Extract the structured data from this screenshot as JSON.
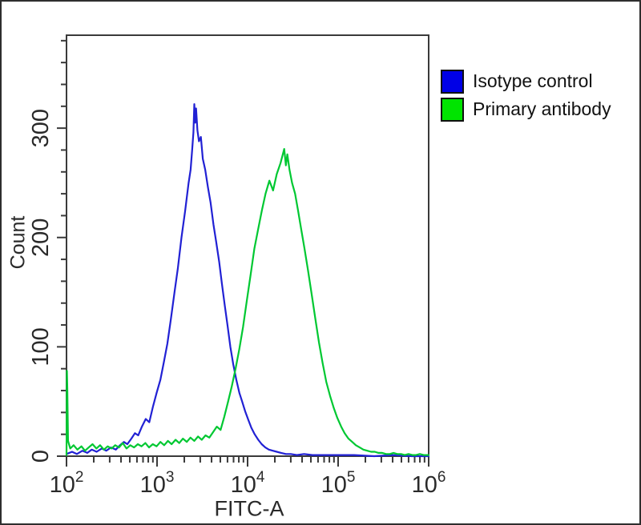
{
  "figure": {
    "background": "#ffffff",
    "outer_border_color": "#2e2e2e",
    "frame_color": "#3a3a3a",
    "text_color": "#2a2a2a"
  },
  "chart_data": {
    "type": "line",
    "title": "",
    "xlabel": "FITC-A",
    "ylabel": "Count",
    "x_scale": "log10",
    "x_range": [
      100,
      1000000
    ],
    "y_range": [
      0,
      385
    ],
    "x_major_ticks": [
      100,
      1000,
      10000,
      100000,
      1000000
    ],
    "x_tick_exponents": [
      2,
      3,
      4,
      5,
      6
    ],
    "x_tick_base": "10",
    "y_major_ticks": [
      0,
      100,
      200,
      300
    ],
    "y_minor_step": 20,
    "grid": false,
    "legend_position": "outside-top-right",
    "series": [
      {
        "name": "Isotype control",
        "color": "#2121d4",
        "swatch_color": "#0000e6",
        "points": [
          [
            100,
            2
          ],
          [
            115,
            4
          ],
          [
            130,
            2
          ],
          [
            150,
            5
          ],
          [
            170,
            3
          ],
          [
            190,
            6
          ],
          [
            215,
            4
          ],
          [
            245,
            7
          ],
          [
            275,
            5
          ],
          [
            310,
            8
          ],
          [
            350,
            6
          ],
          [
            390,
            10
          ],
          [
            430,
            13
          ],
          [
            470,
            11
          ],
          [
            520,
            16
          ],
          [
            570,
            21
          ],
          [
            620,
            19
          ],
          [
            680,
            27
          ],
          [
            750,
            34
          ],
          [
            820,
            31
          ],
          [
            900,
            45
          ],
          [
            990,
            58
          ],
          [
            1090,
            70
          ],
          [
            1190,
            86
          ],
          [
            1300,
            103
          ],
          [
            1420,
            125
          ],
          [
            1560,
            150
          ],
          [
            1700,
            172
          ],
          [
            1860,
            200
          ],
          [
            2040,
            224
          ],
          [
            2230,
            250
          ],
          [
            2350,
            262
          ],
          [
            2440,
            280
          ],
          [
            2520,
            296
          ],
          [
            2580,
            322
          ],
          [
            2640,
            305
          ],
          [
            2700,
            318
          ],
          [
            2790,
            298
          ],
          [
            2900,
            288
          ],
          [
            3050,
            292
          ],
          [
            3200,
            272
          ],
          [
            3400,
            262
          ],
          [
            3650,
            246
          ],
          [
            3900,
            232
          ],
          [
            4200,
            212
          ],
          [
            4500,
            196
          ],
          [
            4850,
            178
          ],
          [
            5200,
            158
          ],
          [
            5600,
            138
          ],
          [
            6000,
            120
          ],
          [
            6450,
            100
          ],
          [
            6950,
            84
          ],
          [
            7500,
            70
          ],
          [
            8100,
            58
          ],
          [
            8700,
            50
          ],
          [
            9400,
            41
          ],
          [
            10200,
            33
          ],
          [
            11000,
            26
          ],
          [
            12000,
            20
          ],
          [
            13100,
            15
          ],
          [
            14300,
            11
          ],
          [
            15700,
            8
          ],
          [
            17200,
            6
          ],
          [
            19000,
            5
          ],
          [
            21000,
            4
          ],
          [
            23500,
            3
          ],
          [
            26500,
            2
          ],
          [
            30000,
            2
          ],
          [
            35000,
            1
          ],
          [
            42000,
            2
          ],
          [
            52000,
            1
          ],
          [
            70000,
            1
          ],
          [
            100000,
            1
          ],
          [
            150000,
            1
          ],
          [
            250000,
            0
          ],
          [
            400000,
            1
          ],
          [
            650000,
            0
          ],
          [
            1000000,
            0
          ]
        ]
      },
      {
        "name": "Primary antibody",
        "color": "#00c832",
        "swatch_color": "#00e400",
        "points": [
          [
            100,
            1
          ],
          [
            101,
            78
          ],
          [
            102,
            62
          ],
          [
            104,
            14
          ],
          [
            110,
            7
          ],
          [
            120,
            10
          ],
          [
            132,
            6
          ],
          [
            146,
            9
          ],
          [
            160,
            5
          ],
          [
            176,
            8
          ],
          [
            194,
            11
          ],
          [
            214,
            7
          ],
          [
            235,
            10
          ],
          [
            259,
            6
          ],
          [
            285,
            9
          ],
          [
            314,
            7
          ],
          [
            345,
            10
          ],
          [
            380,
            8
          ],
          [
            418,
            12
          ],
          [
            460,
            7
          ],
          [
            506,
            10
          ],
          [
            557,
            8
          ],
          [
            613,
            11
          ],
          [
            674,
            9
          ],
          [
            742,
            12
          ],
          [
            816,
            8
          ],
          [
            898,
            11
          ],
          [
            988,
            9
          ],
          [
            1090,
            13
          ],
          [
            1200,
            10
          ],
          [
            1320,
            14
          ],
          [
            1450,
            11
          ],
          [
            1600,
            15
          ],
          [
            1760,
            12
          ],
          [
            1930,
            16
          ],
          [
            2130,
            13
          ],
          [
            2340,
            17
          ],
          [
            2580,
            14
          ],
          [
            2840,
            18
          ],
          [
            3120,
            15
          ],
          [
            3430,
            19
          ],
          [
            3780,
            17
          ],
          [
            4160,
            22
          ],
          [
            4570,
            27
          ],
          [
            5030,
            24
          ],
          [
            5530,
            36
          ],
          [
            6090,
            50
          ],
          [
            6700,
            64
          ],
          [
            7370,
            80
          ],
          [
            8100,
            98
          ],
          [
            8900,
            118
          ],
          [
            9800,
            142
          ],
          [
            10800,
            166
          ],
          [
            11900,
            190
          ],
          [
            13100,
            208
          ],
          [
            14400,
            225
          ],
          [
            15800,
            240
          ],
          [
            17400,
            252
          ],
          [
            19100,
            243
          ],
          [
            21000,
            258
          ],
          [
            23100,
            268
          ],
          [
            25400,
            281
          ],
          [
            26500,
            266
          ],
          [
            27500,
            276
          ],
          [
            29000,
            262
          ],
          [
            31000,
            250
          ],
          [
            33500,
            240
          ],
          [
            36000,
            225
          ],
          [
            39000,
            208
          ],
          [
            42500,
            190
          ],
          [
            46500,
            170
          ],
          [
            51000,
            148
          ],
          [
            56000,
            126
          ],
          [
            61500,
            104
          ],
          [
            67500,
            85
          ],
          [
            74000,
            68
          ],
          [
            81500,
            55
          ],
          [
            89500,
            44
          ],
          [
            98000,
            35
          ],
          [
            108000,
            27
          ],
          [
            118000,
            21
          ],
          [
            130000,
            16
          ],
          [
            143000,
            13
          ],
          [
            157000,
            10
          ],
          [
            173000,
            8
          ],
          [
            190000,
            6
          ],
          [
            210000,
            5
          ],
          [
            231000,
            4
          ],
          [
            254000,
            4
          ],
          [
            279000,
            3
          ],
          [
            307000,
            3
          ],
          [
            338000,
            2
          ],
          [
            372000,
            2
          ],
          [
            409000,
            3
          ],
          [
            450000,
            2
          ],
          [
            495000,
            2
          ],
          [
            545000,
            1
          ],
          [
            600000,
            2
          ],
          [
            660000,
            1
          ],
          [
            726000,
            1
          ],
          [
            799000,
            2
          ],
          [
            879000,
            1
          ],
          [
            967000,
            1
          ],
          [
            1000000,
            1
          ]
        ]
      }
    ]
  }
}
